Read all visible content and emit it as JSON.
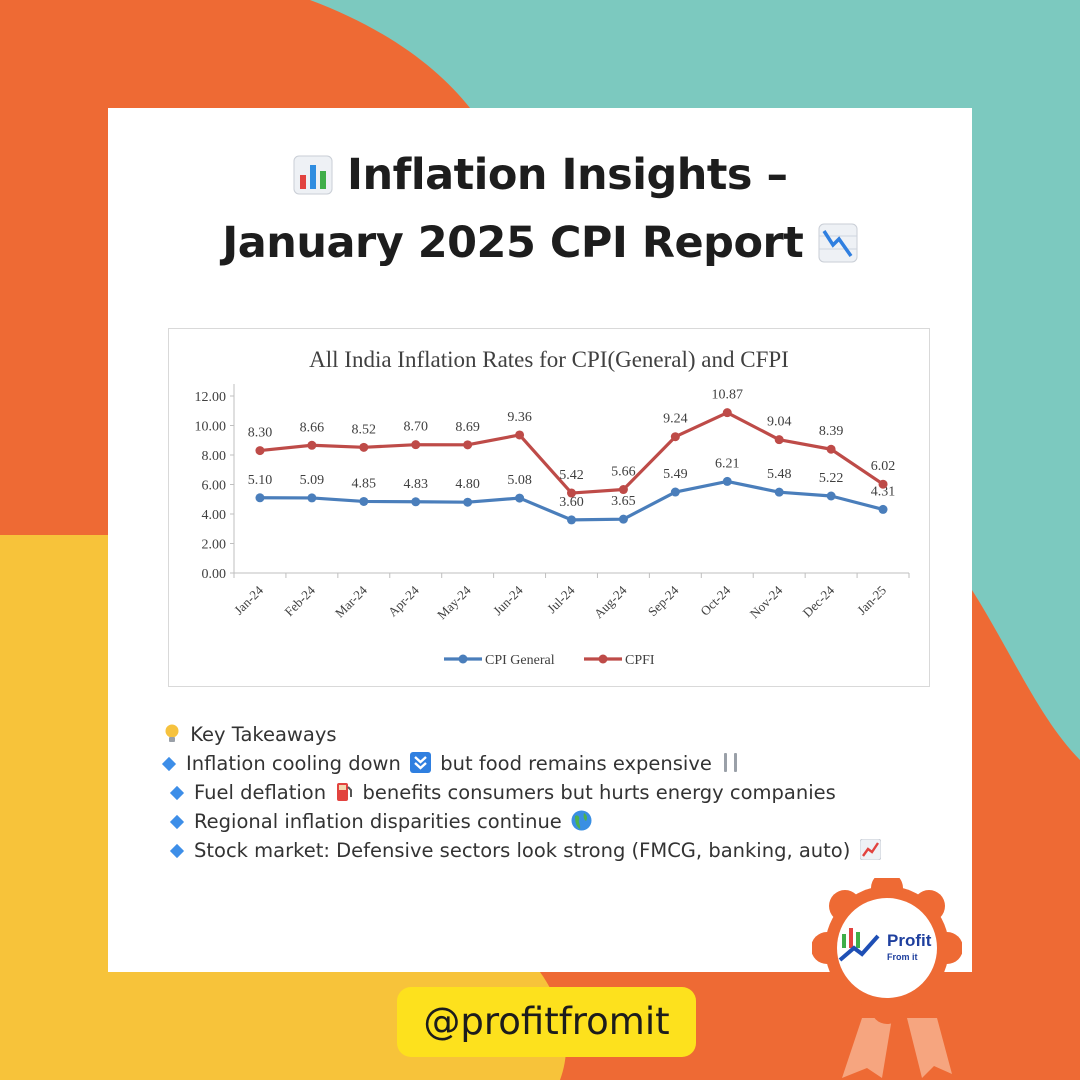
{
  "header": {
    "title_line1": "Inflation Insights  –",
    "title_line2": "January 2025 CPI Report"
  },
  "chart_data": {
    "type": "line",
    "title": "All India Inflation Rates for CPI(General) and CFPI",
    "categories": [
      "Jan-24",
      "Feb-24",
      "Mar-24",
      "Apr-24",
      "May-24",
      "Jun-24",
      "Jul-24",
      "Aug-24",
      "Sep-24",
      "Oct-24",
      "Nov-24",
      "Dec-24",
      "Jan-25"
    ],
    "series": [
      {
        "name": "CPI General",
        "color": "#4a7ebb",
        "values": [
          5.1,
          5.09,
          4.85,
          4.83,
          4.8,
          5.08,
          3.6,
          3.65,
          5.49,
          6.21,
          5.48,
          5.22,
          4.31
        ]
      },
      {
        "name": "CPFI",
        "color": "#be4b48",
        "values": [
          8.3,
          8.66,
          8.52,
          8.7,
          8.69,
          9.36,
          5.42,
          5.66,
          9.24,
          10.87,
          9.04,
          8.39,
          6.02
        ]
      }
    ],
    "yticks": [
      "0.00",
      "2.00",
      "4.00",
      "6.00",
      "8.00",
      "10.00",
      "12.00"
    ],
    "ylim": [
      0,
      12
    ],
    "xlabel": "",
    "ylabel": "",
    "grid": false,
    "legend": "bottom"
  },
  "takeaways": {
    "heading": "Key Takeaways",
    "items": [
      {
        "before": "Inflation cooling down",
        "after": "but food remains expensive",
        "icon": "down-arrow-icon"
      },
      {
        "before": "Fuel deflation",
        "after": "benefits consumers but hurts energy companies",
        "icon": "fuel-pump-icon"
      },
      {
        "before": "Regional inflation disparities continue",
        "after": "",
        "icon": "globe-icon"
      },
      {
        "before": "Stock market: Defensive sectors look strong (FMCG, banking, auto)",
        "after": "",
        "icon": "chart-up-icon"
      }
    ]
  },
  "handle": "@profitfromit",
  "logo": {
    "word1": "Profit",
    "word2": "From it"
  },
  "colors": {
    "teal": "#7cc9bf",
    "orange": "#ee6a34",
    "yellow": "#f7c33a",
    "handle_bg": "#fde11d"
  }
}
